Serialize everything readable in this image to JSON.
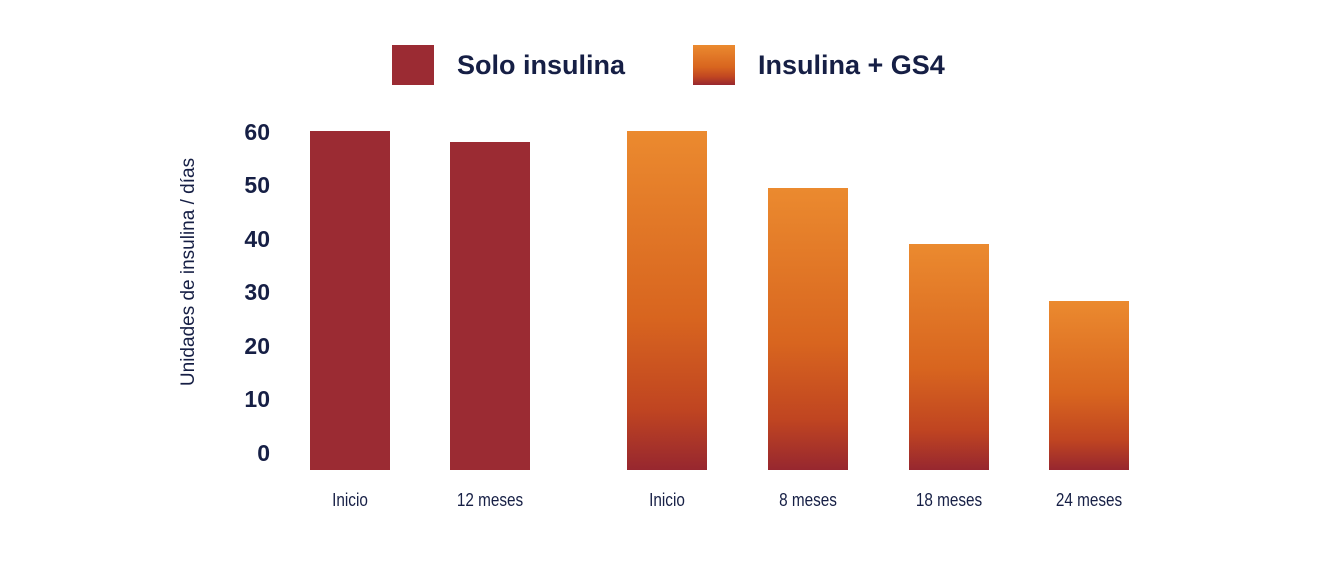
{
  "colors": {
    "text_navy": "#161F45",
    "maroon": "#9B2B33",
    "orange_top": "#EB8A2F",
    "orange_mid": "#D8651F",
    "orange_low": "#C04521",
    "orange_bottom": "#97272F",
    "background": "#FFFFFF"
  },
  "legend": {
    "items": [
      {
        "label": "Solo insulina",
        "swatch": "maroon-solid"
      },
      {
        "label": "Insulina + GS4",
        "swatch": "orange-gradient"
      }
    ]
  },
  "chart_data": {
    "type": "bar",
    "ylabel": "Unidades de insulina / días",
    "ylim": [
      0,
      60
    ],
    "yticks": [
      60,
      50,
      40,
      30,
      20,
      10,
      0
    ],
    "grid": false,
    "legend_position": "top",
    "series": [
      {
        "name": "Solo insulina",
        "color": "#9B2B33",
        "categories": [
          "Inicio",
          "12 meses"
        ],
        "values": [
          60,
          58
        ]
      },
      {
        "name": "Insulina + GS4",
        "color_gradient": [
          "#EB8A2F",
          "#97272F"
        ],
        "categories": [
          "Inicio",
          "8 meses",
          "18 meses",
          "24 meses"
        ],
        "values": [
          60,
          50,
          40,
          30
        ]
      }
    ]
  }
}
